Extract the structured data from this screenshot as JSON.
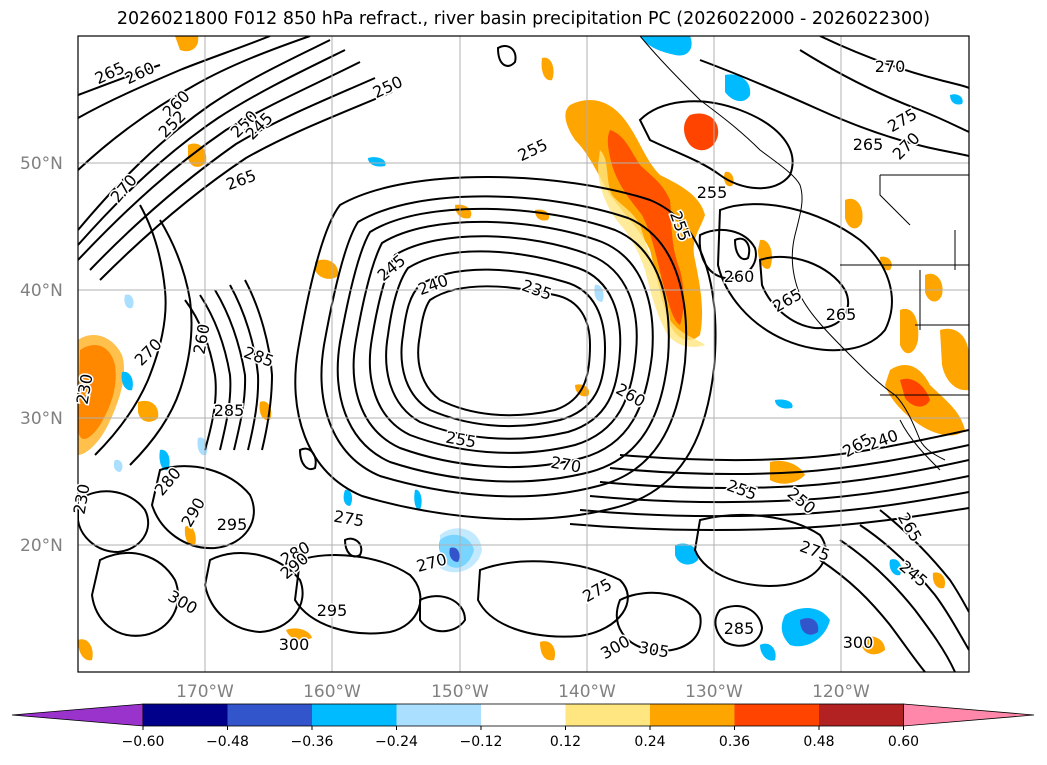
{
  "title": "2026021800 F012 850 hPa refract., river basin precipitation PC (2026022000 - 2026022300)",
  "lat_labels": [
    "50°N",
    "40°N",
    "30°N",
    "20°N"
  ],
  "lon_labels": [
    "170°W",
    "160°W",
    "150°W",
    "140°W",
    "130°W",
    "120°W"
  ],
  "contour_labels": [
    "265",
    "260",
    "250",
    "270",
    "275",
    "270",
    "260",
    "252",
    "250",
    "245",
    "255",
    "265",
    "270",
    "265",
    "255",
    "245",
    "240",
    "235",
    "260",
    "265",
    "265",
    "285",
    "270",
    "260",
    "255",
    "285",
    "230",
    "280",
    "290",
    "295",
    "275",
    "280",
    "290",
    "300",
    "295",
    "300",
    "270",
    "275",
    "300",
    "305",
    "285",
    "300",
    "250",
    "255",
    "255",
    "240",
    "270",
    "260",
    "265",
    "265",
    "245",
    "275",
    "230"
  ],
  "colorbar": {
    "ticks": [
      "−0.60",
      "−0.48",
      "−0.36",
      "−0.24",
      "−0.12",
      "0.12",
      "0.24",
      "0.36",
      "0.48",
      "0.60"
    ],
    "colors": [
      "#9933cc",
      "#00008b",
      "#3355cc",
      "#00bbff",
      "#aadfff",
      "#ffffff",
      "#ffe680",
      "#ffa500",
      "#ff4400",
      "#b22222",
      "#ff88aa"
    ]
  }
}
